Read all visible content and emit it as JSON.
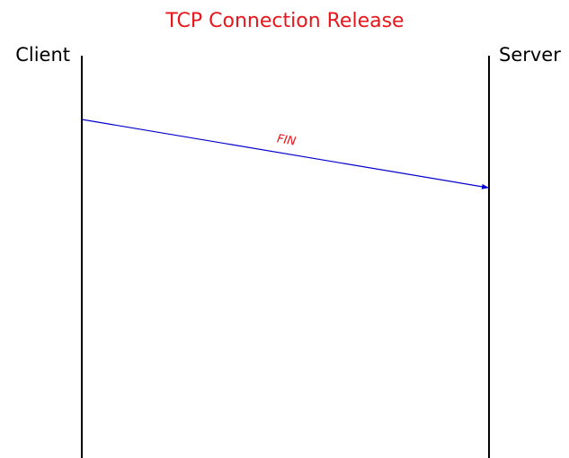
{
  "title": "TCP Connection Release",
  "participants": [
    "Client",
    "Server"
  ],
  "messages": [
    {
      "label": "FIN",
      "from": "Client",
      "to": "Server"
    }
  ]
}
